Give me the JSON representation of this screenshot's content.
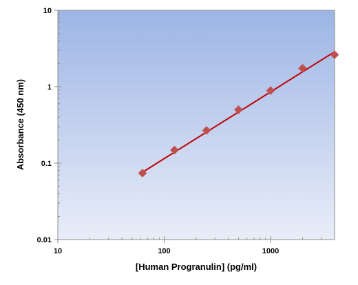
{
  "chart_data": {
    "type": "scatter",
    "title": "",
    "xlabel": "[Human Progranulin] (pg/ml)",
    "ylabel": "Absorbance (450 nm)",
    "x_scale": "log",
    "y_scale": "log",
    "xlim": [
      10,
      4000
    ],
    "ylim": [
      0.01,
      10
    ],
    "x_ticks": [
      10,
      100,
      1000
    ],
    "x_tick_labels": [
      "10",
      "100",
      "1000"
    ],
    "y_ticks": [
      0.01,
      0.1,
      1,
      10
    ],
    "y_tick_labels": [
      "0.01",
      "0.1",
      "1",
      "10"
    ],
    "grid": false,
    "legend": "none",
    "series": [
      {
        "marker": "diamond",
        "color": "#c0504d",
        "x": [
          62.5,
          125,
          250,
          500,
          1000,
          2000,
          4000
        ],
        "y": [
          0.074,
          0.148,
          0.268,
          0.5,
          0.89,
          1.74,
          2.62
        ]
      }
    ],
    "fit_line": {
      "color": "#c00000",
      "x": [
        62.5,
        4000
      ],
      "y": [
        0.076,
        2.87
      ]
    },
    "plot_background": {
      "top": "#9db5e5",
      "bottom": "#e9edf8"
    }
  }
}
